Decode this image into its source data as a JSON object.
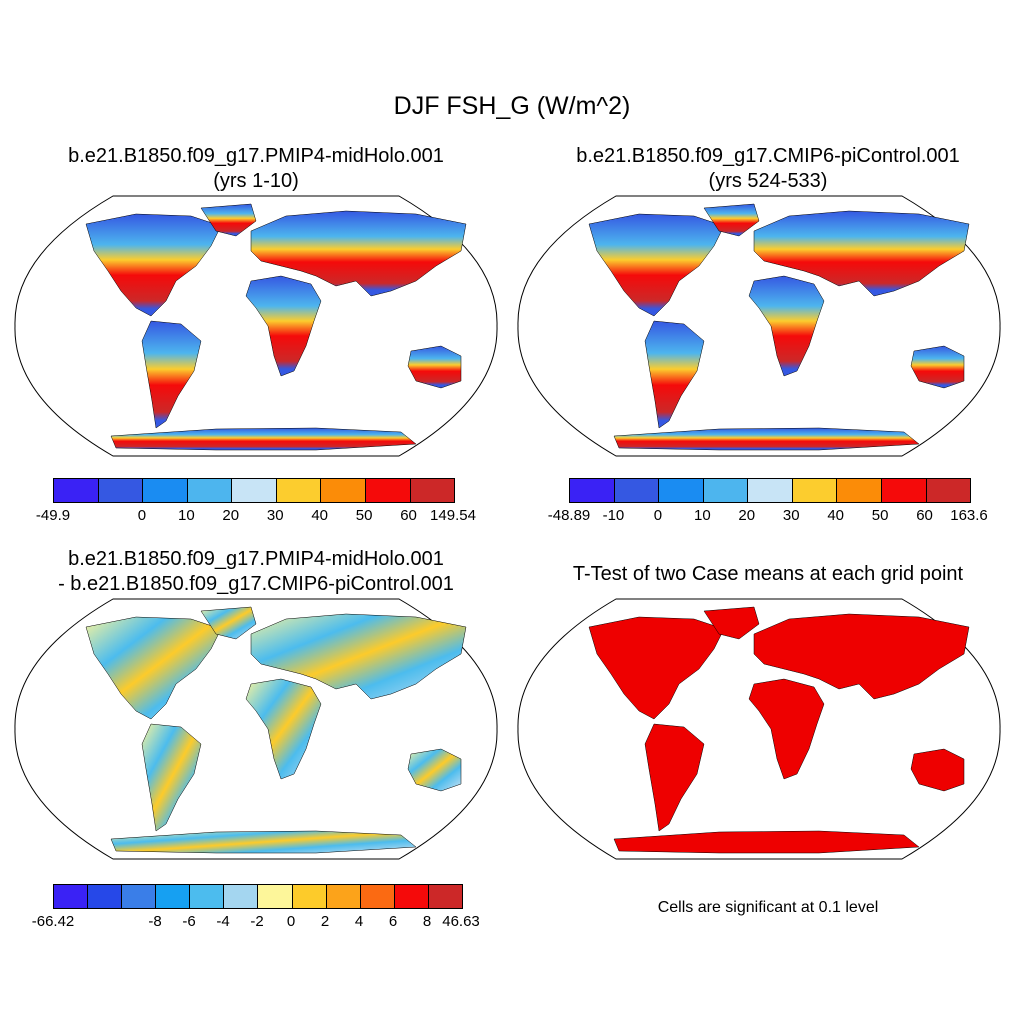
{
  "main_title": "DJF FSH_G (W/m^2)",
  "panels": [
    {
      "title_line1": "b.e21.B1850.f09_g17.PMIP4-midHolo.001",
      "title_line2": "(yrs 1-10)",
      "colorbar": {
        "colors": [
          "#3a22f5",
          "#3558e2",
          "#1a8cf2",
          "#4db5ee",
          "#c8e4f6",
          "#fccd2e",
          "#fb8c08",
          "#f50a0a",
          "#cc2828"
        ],
        "labels": [
          "-49.9",
          "0",
          "10",
          "20",
          "30",
          "40",
          "50",
          "60",
          "149.54"
        ]
      }
    },
    {
      "title_line1": "b.e21.B1850.f09_g17.CMIP6-piControl.001",
      "title_line2": "(yrs 524-533)",
      "colorbar": {
        "colors": [
          "#3a22f5",
          "#3558e2",
          "#1a8cf2",
          "#4db5ee",
          "#c8e4f6",
          "#fccd2e",
          "#fb8c08",
          "#f50a0a",
          "#cc2828"
        ],
        "labels": [
          "-48.89",
          "-10",
          "0",
          "10",
          "20",
          "30",
          "40",
          "50",
          "60",
          "163.6"
        ]
      }
    },
    {
      "title_line1": "b.e21.B1850.f09_g17.PMIP4-midHolo.001",
      "title_line2": "- b.e21.B1850.f09_g17.CMIP6-piControl.001",
      "colorbar": {
        "colors": [
          "#3a22f5",
          "#2648e8",
          "#3a7ee8",
          "#16a0f2",
          "#4cbcee",
          "#a4d6f0",
          "#fdf69a",
          "#fdcb2a",
          "#fca31a",
          "#fb6a12",
          "#f50a0a",
          "#cc2828"
        ],
        "labels": [
          "-66.42",
          "-8",
          "-6",
          "-4",
          "-2",
          "0",
          "2",
          "4",
          "6",
          "8",
          "46.63"
        ]
      }
    },
    {
      "title_line1": "T-Test of two Case means at each grid point",
      "note": "Cells are significant at 0.1 level",
      "color": "#ee0000"
    }
  ]
}
